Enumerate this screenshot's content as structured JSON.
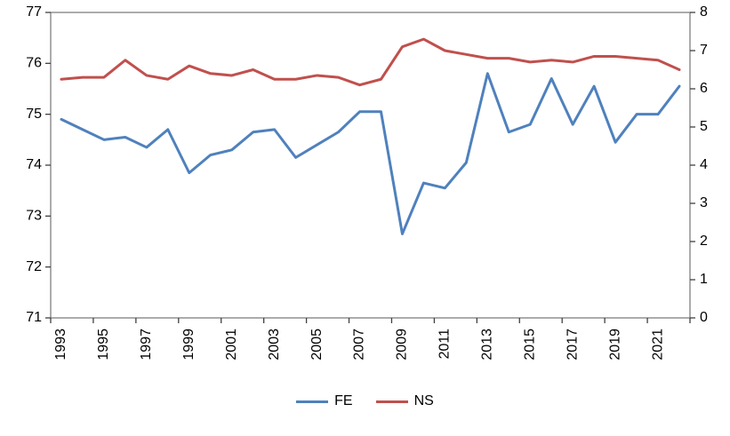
{
  "chart_data": {
    "type": "line",
    "title": "",
    "xlabel": "",
    "ylabel_left": "",
    "ylabel_right": "",
    "grid": false,
    "legend_position": "bottom",
    "x": [
      1993,
      1994,
      1995,
      1996,
      1997,
      1998,
      1999,
      2000,
      2001,
      2002,
      2003,
      2004,
      2005,
      2006,
      2007,
      2008,
      2009,
      2010,
      2011,
      2012,
      2013,
      2014,
      2015,
      2016,
      2017,
      2018,
      2019,
      2020,
      2021,
      2022
    ],
    "x_tick_labels": [
      "1993",
      "1995",
      "1997",
      "1999",
      "2001",
      "2003",
      "2005",
      "2007",
      "2009",
      "2011",
      "2013",
      "2015",
      "2017",
      "2019",
      "2021"
    ],
    "left_axis": {
      "min": 71,
      "max": 77,
      "step": 1,
      "ticks": [
        71,
        72,
        73,
        74,
        75,
        76,
        77
      ]
    },
    "right_axis": {
      "min": 0,
      "max": 8,
      "step": 1,
      "ticks": [
        0,
        1,
        2,
        3,
        4,
        5,
        6,
        7,
        8
      ]
    },
    "series": [
      {
        "name": "FE",
        "axis": "left",
        "color": "#4F81BD",
        "values": [
          74.9,
          74.7,
          74.5,
          74.55,
          74.35,
          74.7,
          73.85,
          74.2,
          74.3,
          74.65,
          74.7,
          74.15,
          74.4,
          74.65,
          75.05,
          75.05,
          72.65,
          73.65,
          73.55,
          74.05,
          75.8,
          74.65,
          74.8,
          75.7,
          74.8,
          75.55,
          74.45,
          75.0,
          75.0,
          75.55
        ]
      },
      {
        "name": "NS",
        "axis": "right",
        "color": "#C0504D",
        "values": [
          6.25,
          6.3,
          6.3,
          6.75,
          6.35,
          6.25,
          6.6,
          6.4,
          6.35,
          6.5,
          6.25,
          6.25,
          6.35,
          6.3,
          6.1,
          6.25,
          7.1,
          7.3,
          7.0,
          6.9,
          6.8,
          6.8,
          6.7,
          6.75,
          6.7,
          6.85,
          6.85,
          6.8,
          6.75,
          6.5
        ]
      }
    ],
    "styles": {
      "plot_border_color": "#7f7f7f",
      "tick_color": "#404040",
      "axis_font_size": 16,
      "line_width": 3
    }
  }
}
